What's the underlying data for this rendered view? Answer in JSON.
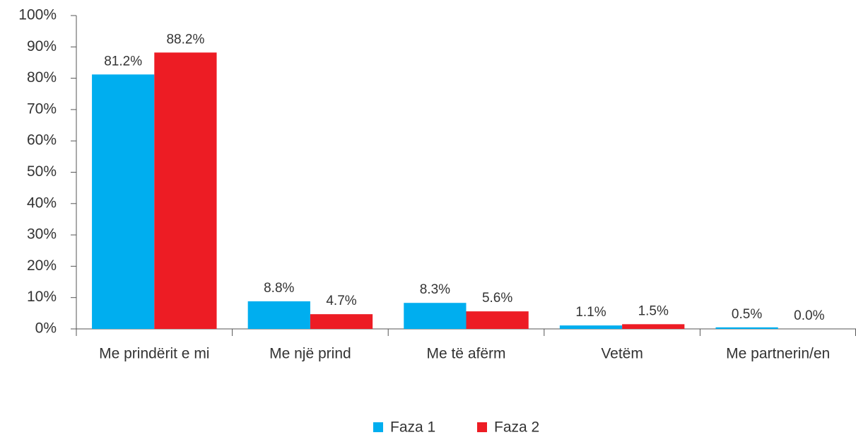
{
  "chart_data": {
    "type": "bar",
    "categories": [
      "Me prindërit e mi",
      "Me një prind",
      "Me të afërm",
      "Vetëm",
      "Me partnerin/en"
    ],
    "series": [
      {
        "name": "Faza 1",
        "color": "#00aeef",
        "values": [
          81.2,
          8.8,
          8.3,
          1.1,
          0.5
        ],
        "value_labels": [
          "81.2%",
          "8.8%",
          "8.3%",
          "1.1%",
          "0.5%"
        ]
      },
      {
        "name": "Faza 2",
        "color": "#ed1c24",
        "values": [
          88.2,
          4.7,
          5.6,
          1.5,
          0.0
        ],
        "value_labels": [
          "88.2%",
          "4.7%",
          "5.6%",
          "1.5%",
          "0.0%"
        ]
      }
    ],
    "ylim": [
      0,
      100
    ],
    "yticks": [
      {
        "value": 0,
        "label": "0%"
      },
      {
        "value": 10,
        "label": "10%"
      },
      {
        "value": 20,
        "label": "20%"
      },
      {
        "value": 30,
        "label": "30%"
      },
      {
        "value": 40,
        "label": "40%"
      },
      {
        "value": 50,
        "label": "50%"
      },
      {
        "value": 60,
        "label": "60%"
      },
      {
        "value": 70,
        "label": "70%"
      },
      {
        "value": 80,
        "label": "80%"
      },
      {
        "value": 90,
        "label": "90%"
      },
      {
        "value": 100,
        "label": "100%"
      }
    ],
    "legend": "bottom"
  }
}
